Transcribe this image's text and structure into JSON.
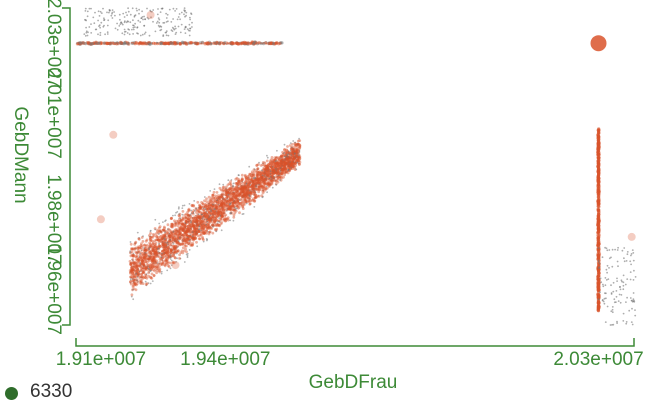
{
  "chart_data": {
    "type": "scatter",
    "xlabel": "GebDFrau",
    "ylabel": "GebDMann",
    "x_ticks": [
      {
        "value": 19100000,
        "label": "1.91e+007"
      },
      {
        "value": 19400000,
        "label": "1.94e+007"
      },
      {
        "value": 20300000,
        "label": "2.03e+007"
      }
    ],
    "y_ticks": [
      {
        "value": 20300000,
        "label": "2.03e+007"
      },
      {
        "value": 20100000,
        "label": "2.01e+007"
      },
      {
        "value": 19800000,
        "label": "1.98e+007"
      },
      {
        "value": 19600000,
        "label": "1.96e+007"
      }
    ],
    "xlim": [
      19040000,
      20400000
    ],
    "ylim": [
      19500000,
      20400000
    ],
    "clusters": [
      {
        "name": "diagonal-band",
        "kind": "band",
        "x_range": [
          19170000,
          19580000
        ],
        "y_start": [
          19560000,
          19750000
        ],
        "y_end": [
          19940000,
          20040000
        ],
        "count": 3200,
        "color": "#d9532b"
      },
      {
        "name": "horizontal-line",
        "kind": "hline",
        "y": 20300000,
        "x_range": [
          19040000,
          19540000
        ],
        "count": 420,
        "color": "#d9532b"
      },
      {
        "name": "top-sparse",
        "kind": "box",
        "x_range": [
          19060000,
          19320000
        ],
        "y_range": [
          20320000,
          20400000
        ],
        "count": 220,
        "color": "#777777"
      },
      {
        "name": "vertical-line",
        "kind": "vline",
        "x": 20300000,
        "y_range": [
          19540000,
          20060000
        ],
        "count": 460,
        "color": "#d9532b"
      },
      {
        "name": "bottom-right-sparse",
        "kind": "box",
        "x_range": [
          20300000,
          20390000
        ],
        "y_range": [
          19500000,
          19720000
        ],
        "count": 120,
        "color": "#777777"
      },
      {
        "name": "hotspot",
        "kind": "point",
        "x": 20300000,
        "y": 20300000,
        "size": 12,
        "color": "#d9532b"
      }
    ],
    "legend": [
      {
        "label": "6330",
        "color": "#2f6d2b"
      }
    ],
    "grid": false
  }
}
